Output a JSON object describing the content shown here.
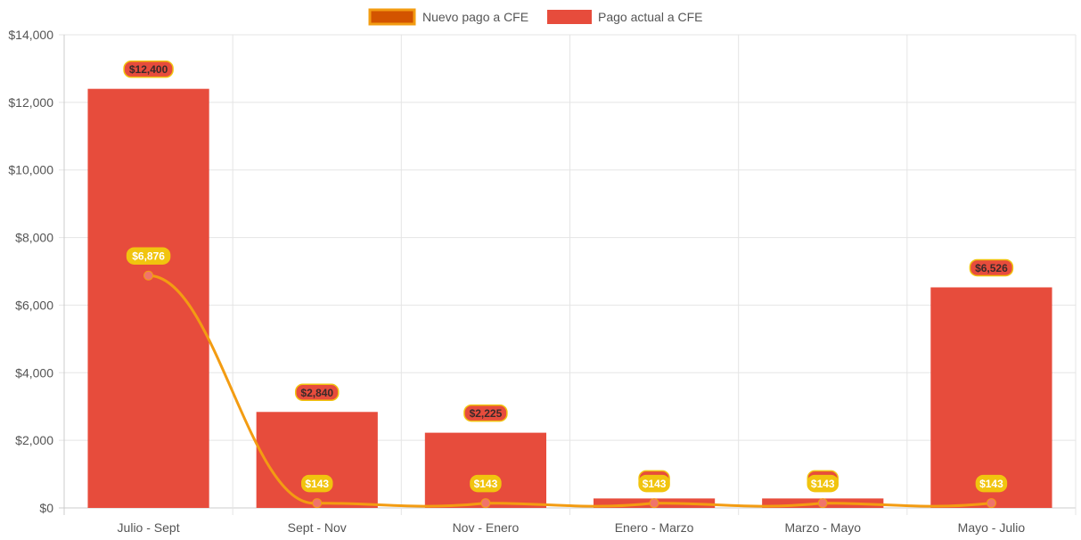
{
  "chart_data": {
    "type": "bar",
    "categories": [
      "Julio - Sept",
      "Sept - Nov",
      "Nov - Enero",
      "Enero - Marzo",
      "Marzo - Mayo",
      "Mayo - Julio"
    ],
    "ylim": [
      0,
      14000
    ],
    "y_ticks": [
      "$0",
      "$2,000",
      "$4,000",
      "$6,000",
      "$8,000",
      "$10,000",
      "$12,000",
      "$14,000"
    ],
    "grid": true,
    "legend_position": "top-center",
    "series": [
      {
        "name": "Nuevo pago a CFE",
        "kind": "line",
        "color": "#f39c12",
        "marker_color": "#f0746b",
        "label_bg": "#f1c40f",
        "label_color": "#ffffff",
        "values": [
          6876,
          143,
          143,
          143,
          143,
          143
        ],
        "labels": [
          "$6,876",
          "$143",
          "$143",
          "$143",
          "$143",
          "$143"
        ]
      },
      {
        "name": "Pago actual a CFE",
        "kind": "bar",
        "color": "#e74c3c",
        "label_bg": "#e74c3c",
        "label_border": "#f1c40f",
        "label_color": "#3a2a2a",
        "values": [
          12400,
          2840,
          2225,
          280,
          280,
          6526
        ],
        "labels": [
          "$12,400",
          "$2,840",
          "$2,225",
          "$280",
          "$280",
          "$6,526"
        ]
      }
    ]
  },
  "colors": {
    "grid": "#e5e5e5",
    "axis": "#cccccc",
    "legend_line_swatch_fill": "#d35400",
    "legend_line_swatch_border": "#f39c12"
  }
}
